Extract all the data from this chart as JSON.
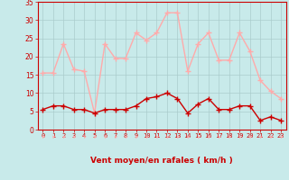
{
  "hours": [
    0,
    1,
    2,
    3,
    4,
    5,
    6,
    7,
    8,
    9,
    10,
    11,
    12,
    13,
    14,
    15,
    16,
    17,
    18,
    19,
    20,
    21,
    22,
    23
  ],
  "rafales": [
    15.5,
    15.5,
    23.5,
    16.5,
    16,
    4.5,
    23.5,
    19.5,
    19.5,
    26.5,
    24.5,
    26.5,
    32,
    32,
    16,
    23.5,
    26.5,
    19,
    19,
    26.5,
    21.5,
    13.5,
    10.5,
    8.5
  ],
  "moyen": [
    5.5,
    6.5,
    6.5,
    5.5,
    5.5,
    4.5,
    5.5,
    5.5,
    5.5,
    6.5,
    8.5,
    9,
    10,
    8.5,
    4.5,
    7,
    8.5,
    5.5,
    5.5,
    6.5,
    6.5,
    2.5,
    3.5,
    2.5
  ],
  "color_rafales": "#ffaaaa",
  "color_moyen": "#cc0000",
  "bg_color": "#c8eaea",
  "grid_color": "#aacccc",
  "xlabel": "Vent moyen/en rafales ( km/h )",
  "xlabel_color": "#cc0000",
  "tick_color": "#cc0000",
  "spine_color": "#cc0000",
  "ylim": [
    0,
    35
  ],
  "yticks": [
    0,
    5,
    10,
    15,
    20,
    25,
    30,
    35
  ],
  "xlim": [
    -0.5,
    23.5
  ],
  "marker_size": 3,
  "line_width": 1.0
}
